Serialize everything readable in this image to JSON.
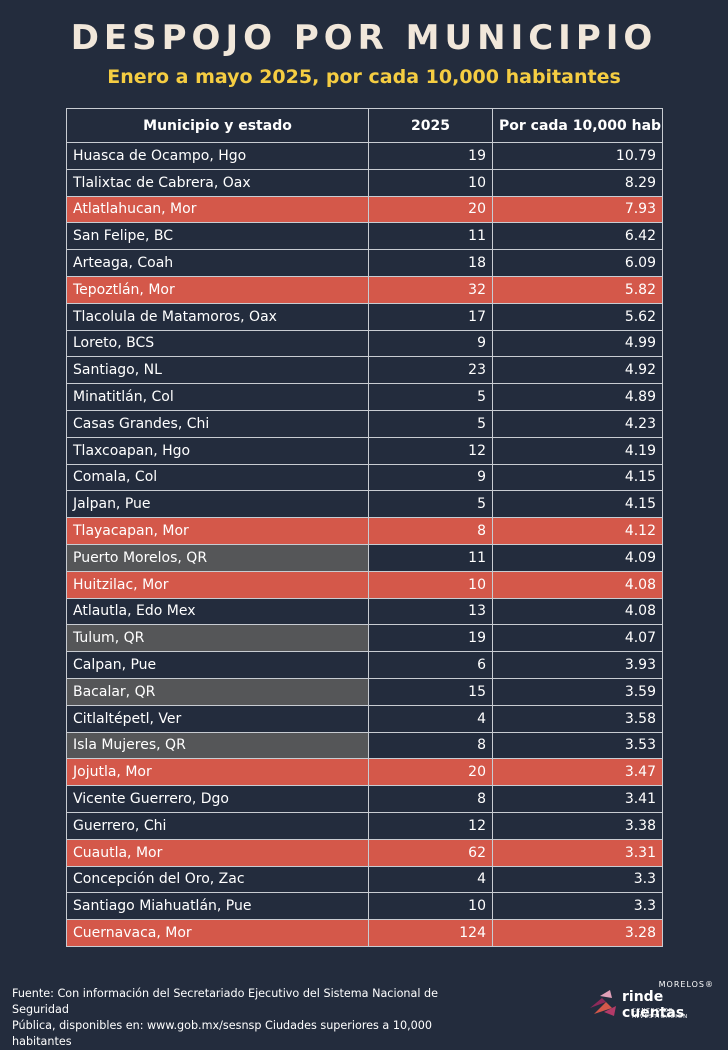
{
  "title": "DESPOJO POR MUNICIPIO",
  "subtitle": "Enero a mayo 2025, por cada 10,000 habitantes",
  "chart_data": {
    "type": "table",
    "columns": [
      "Municipio y estado",
      "2025",
      "Por cada 10,000 hab"
    ],
    "rows": [
      {
        "name": "Huasca de Ocampo, Hgo",
        "count": "19",
        "rate": "10.79",
        "group": ""
      },
      {
        "name": "Tlalixtac de Cabrera, Oax",
        "count": "10",
        "rate": "8.29",
        "group": ""
      },
      {
        "name": "Atlatlahucan, Mor",
        "count": "20",
        "rate": "7.93",
        "group": "mor"
      },
      {
        "name": "San Felipe, BC",
        "count": "11",
        "rate": "6.42",
        "group": ""
      },
      {
        "name": "Arteaga, Coah",
        "count": "18",
        "rate": "6.09",
        "group": ""
      },
      {
        "name": "Tepoztlán, Mor",
        "count": "32",
        "rate": "5.82",
        "group": "mor"
      },
      {
        "name": "Tlacolula de Matamoros, Oax",
        "count": "17",
        "rate": "5.62",
        "group": ""
      },
      {
        "name": "Loreto, BCS",
        "count": "9",
        "rate": "4.99",
        "group": ""
      },
      {
        "name": "Santiago, NL",
        "count": "23",
        "rate": "4.92",
        "group": ""
      },
      {
        "name": "Minatitlán, Col",
        "count": "5",
        "rate": "4.89",
        "group": ""
      },
      {
        "name": "Casas Grandes, Chi",
        "count": "5",
        "rate": "4.23",
        "group": ""
      },
      {
        "name": "Tlaxcoapan, Hgo",
        "count": "12",
        "rate": "4.19",
        "group": ""
      },
      {
        "name": "Comala, Col",
        "count": "9",
        "rate": "4.15",
        "group": ""
      },
      {
        "name": "Jalpan, Pue",
        "count": "5",
        "rate": "4.15",
        "group": ""
      },
      {
        "name": "Tlayacapan, Mor",
        "count": "8",
        "rate": "4.12",
        "group": "mor"
      },
      {
        "name": "Puerto Morelos, QR",
        "count": "11",
        "rate": "4.09",
        "group": "qr"
      },
      {
        "name": "Huitzilac, Mor",
        "count": "10",
        "rate": "4.08",
        "group": "mor"
      },
      {
        "name": "Atlautla, Edo Mex",
        "count": "13",
        "rate": "4.08",
        "group": ""
      },
      {
        "name": "Tulum, QR",
        "count": "19",
        "rate": "4.07",
        "group": "qr"
      },
      {
        "name": "Calpan, Pue",
        "count": "6",
        "rate": "3.93",
        "group": ""
      },
      {
        "name": "Bacalar, QR",
        "count": "15",
        "rate": "3.59",
        "group": "qr"
      },
      {
        "name": "Citlaltépetl, Ver",
        "count": "4",
        "rate": "3.58",
        "group": ""
      },
      {
        "name": "Isla Mujeres, QR",
        "count": "8",
        "rate": "3.53",
        "group": "qr"
      },
      {
        "name": "Jojutla, Mor",
        "count": "20",
        "rate": "3.47",
        "group": "mor"
      },
      {
        "name": "Vicente Guerrero, Dgo",
        "count": "8",
        "rate": "3.41",
        "group": ""
      },
      {
        "name": "Guerrero, Chi",
        "count": "12",
        "rate": "3.38",
        "group": ""
      },
      {
        "name": "Cuautla, Mor",
        "count": "62",
        "rate": "3.31",
        "group": "mor"
      },
      {
        "name": "Concepción del Oro, Zac",
        "count": "4",
        "rate": "3.3",
        "group": ""
      },
      {
        "name": "Santiago Miahuatlán, Pue",
        "count": "10",
        "rate": "3.3",
        "group": ""
      },
      {
        "name": "Cuernavaca, Mor",
        "count": "124",
        "rate": "3.28",
        "group": "mor"
      }
    ]
  },
  "footer": {
    "line1": "Fuente: Con información del Secretariado Ejecutivo del Sistema Nacional de Seguridad",
    "line2": "Pública, disponibles en: www.gob.mx/sesnsp Ciudades superiores a 10,000 habitantes"
  },
  "logo": {
    "top": "MORELOS®",
    "main": "rinde cuentas",
    "sub": "CENTRO DE INVESTIGACIÓN"
  },
  "colors": {
    "background": "#232c3d",
    "title": "#f1e7da",
    "subtitle": "#f5cd42",
    "morelos_row": "#d4584a",
    "qr_cell": "#555658"
  }
}
